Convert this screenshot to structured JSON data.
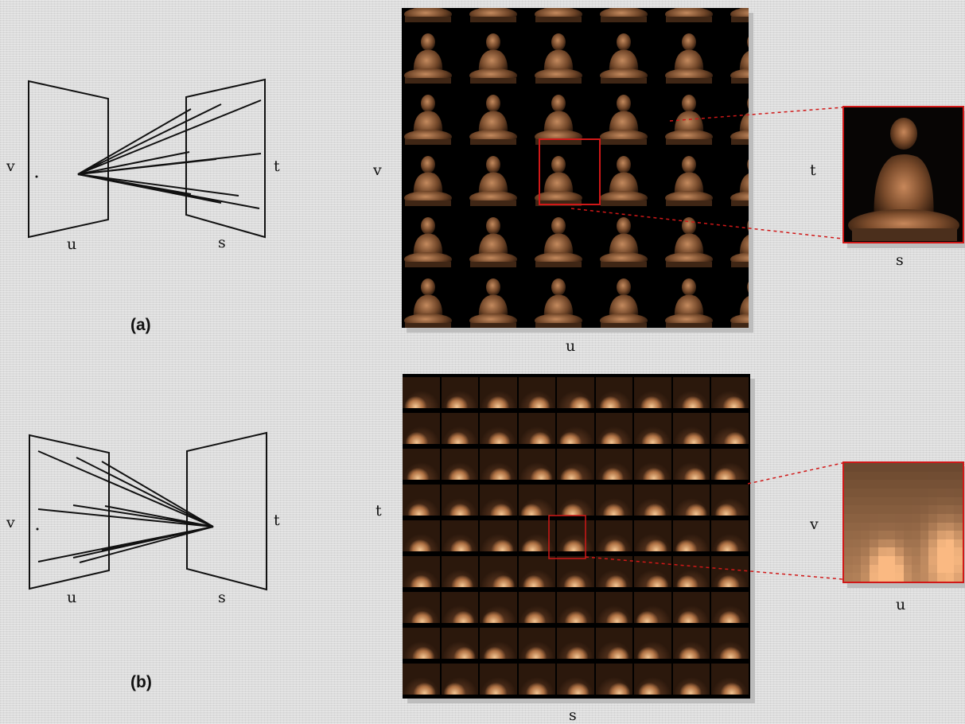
{
  "panel_a": {
    "caption": "(a)",
    "diagram": {
      "left_plane_v": "v",
      "left_plane_u": "u",
      "right_plane_t": "t",
      "right_plane_s": "s"
    },
    "image_grid": {
      "v": "v",
      "u": "u"
    },
    "zoom": {
      "t": "t",
      "s": "s"
    }
  },
  "panel_b": {
    "caption": "(b)",
    "diagram": {
      "left_plane_v": "v",
      "left_plane_u": "u",
      "right_plane_t": "t",
      "right_plane_s": "s"
    },
    "image_grid": {
      "t": "t",
      "s": "s"
    },
    "zoom": {
      "v": "v",
      "u": "u"
    }
  },
  "colors": {
    "highlight": "#d01818",
    "background": "#dcdcdc",
    "grid_bg": "#000000"
  }
}
